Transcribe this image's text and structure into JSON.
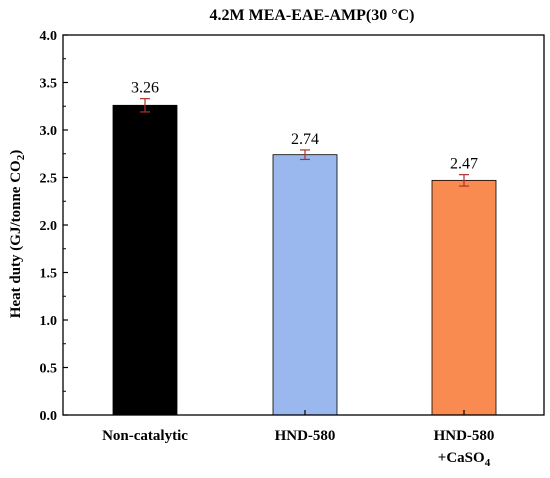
{
  "chart_data": {
    "type": "bar",
    "title": "4.2M MEA-EAE-AMP(30 °C)",
    "xlabel": "",
    "ylabel": "Heat duty (GJ/tonne CO",
    "ylabel_sub": "2",
    "ylabel_end": ")",
    "categories": [
      "Non-catalytic",
      "HND-580",
      "HND-580"
    ],
    "category_line2": [
      "",
      "",
      "+CaSO"
    ],
    "category_line2_sub": [
      "",
      "",
      "4"
    ],
    "values": [
      3.26,
      2.74,
      2.47
    ],
    "errors": [
      0.07,
      0.05,
      0.06
    ],
    "data_labels": [
      "3.26",
      "2.74",
      "2.47"
    ],
    "colors": [
      "#000000",
      "#9ab8ee",
      "#f98b50"
    ],
    "error_color": "#b03030",
    "ylim": [
      0.0,
      4.0
    ],
    "yticks": [
      "0.0",
      "0.5",
      "1.0",
      "1.5",
      "2.0",
      "2.5",
      "3.0",
      "3.5",
      "4.0"
    ],
    "ytick_values": [
      0.0,
      0.5,
      1.0,
      1.5,
      2.0,
      2.5,
      3.0,
      3.5,
      4.0
    ],
    "grid": false,
    "legend": "none"
  }
}
